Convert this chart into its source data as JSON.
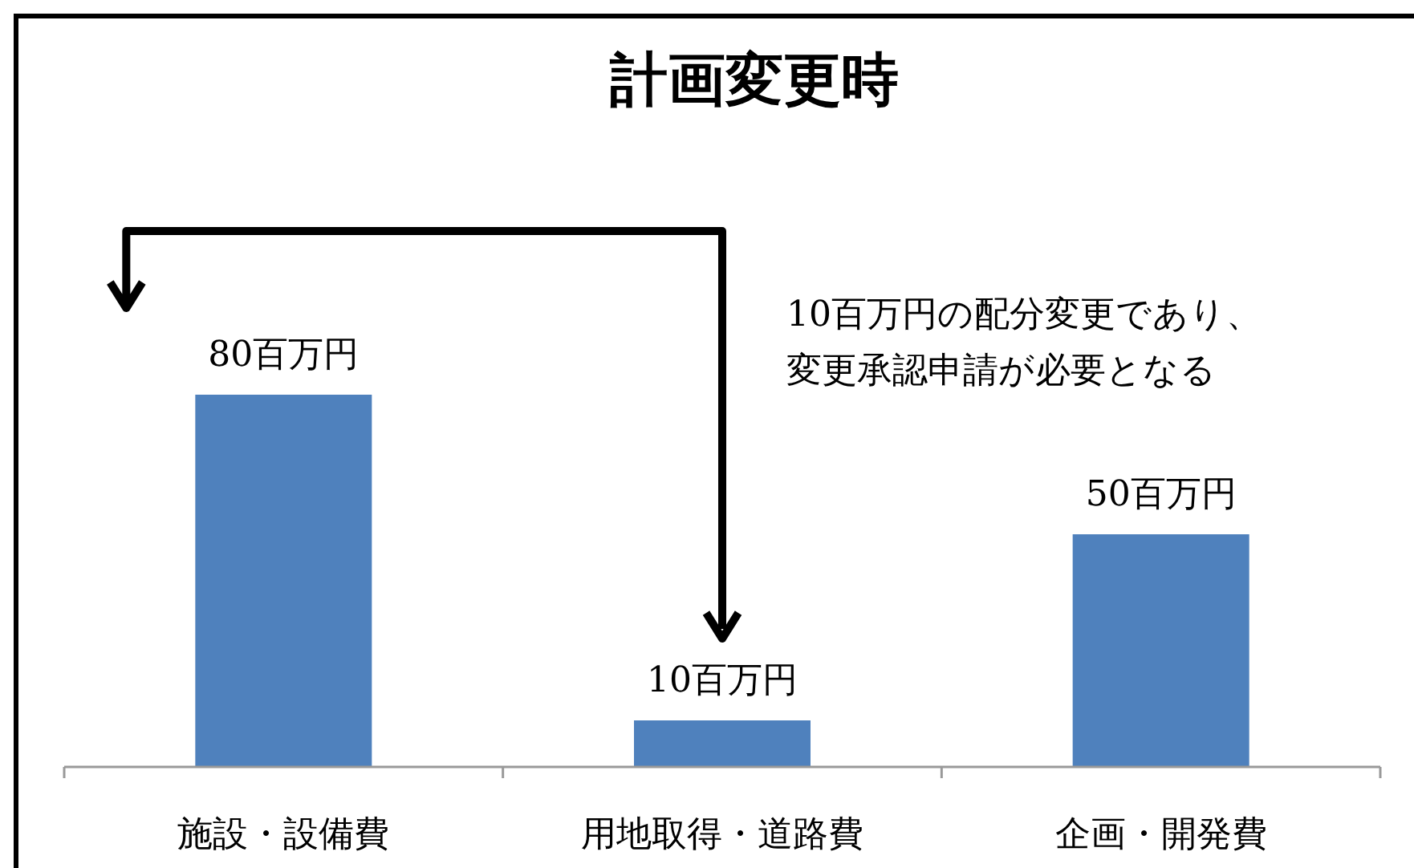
{
  "chart_data": {
    "type": "bar",
    "title": "計画変更時",
    "categories": [
      "施設・設備費",
      "用地取得・道路費",
      "企画・開発費"
    ],
    "values": [
      80,
      10,
      50
    ],
    "value_labels": [
      "80百万円",
      "10百万円",
      "50百万円"
    ],
    "color": "#4f81bd",
    "annotations": [
      "10百万円の配分変更であり、",
      "変更承認申請が必要となる"
    ]
  }
}
